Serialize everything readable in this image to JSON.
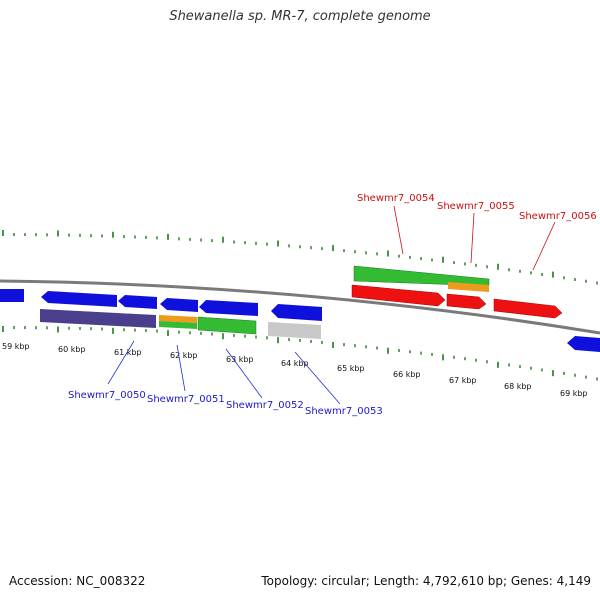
{
  "title": "Shewanella sp. MR-7, complete genome",
  "accession": "Accession: NC_008322",
  "topology": "Topology: circular; Length: 4,792,610 bp; Genes: 4,149",
  "colors": {
    "blue_gene": "#1010dd",
    "purple_gene": "#4a3f8c",
    "green_gene": "#33bb33",
    "orange_gene": "#ee9a1a",
    "red_gene": "#ee1111",
    "grey_gene": "#c8c8c8",
    "backbone": "#7a7a7a",
    "gc_ticks": "#1a7a1a"
  },
  "kbp_labels": [
    "59 kbp",
    "60 kbp",
    "61 kbp",
    "62 kbp",
    "63 kbp",
    "64 kbp",
    "65 kbp",
    "66 kbp",
    "67 kbp",
    "68 kbp",
    "69 kbp"
  ],
  "genes": [
    {
      "id": "Shewmr7_0050",
      "color": "blue"
    },
    {
      "id": "Shewmr7_0051",
      "color": "blue"
    },
    {
      "id": "Shewmr7_0052",
      "color": "blue"
    },
    {
      "id": "Shewmr7_0053",
      "color": "blue"
    },
    {
      "id": "Shewmr7_0054",
      "color": "red"
    },
    {
      "id": "Shewmr7_0055",
      "color": "red"
    },
    {
      "id": "Shewmr7_0056",
      "color": "red"
    }
  ]
}
